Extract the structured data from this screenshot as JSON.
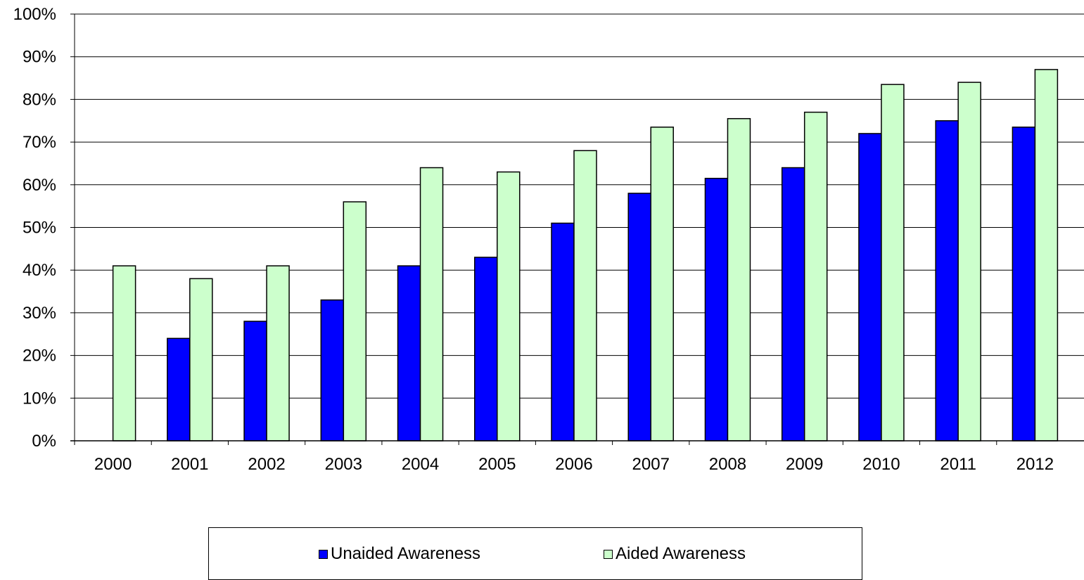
{
  "chart_data": {
    "type": "bar",
    "categories": [
      "2000",
      "2001",
      "2002",
      "2003",
      "2004",
      "2005",
      "2006",
      "2007",
      "2008",
      "2009",
      "2010",
      "2011",
      "2012"
    ],
    "series": [
      {
        "name": "Unaided Awareness",
        "color": "#0000FF",
        "values": [
          null,
          24,
          28,
          33,
          41,
          43,
          51,
          58,
          61.5,
          64,
          72,
          75,
          73.5
        ]
      },
      {
        "name": "Aided Awareness",
        "color": "#CCFFCC",
        "values": [
          41,
          38,
          41,
          56,
          64,
          63,
          68,
          73.5,
          75.5,
          77,
          83.5,
          84,
          87
        ]
      }
    ],
    "ylim": [
      0,
      100
    ],
    "yticks": [
      "0%",
      "10%",
      "20%",
      "30%",
      "40%",
      "50%",
      "60%",
      "70%",
      "80%",
      "90%",
      "100%"
    ],
    "y_tick_values": [
      0,
      10,
      20,
      30,
      40,
      50,
      60,
      70,
      80,
      90,
      100
    ],
    "grid": true,
    "legend_position": "bottom",
    "title": "",
    "xlabel": "",
    "ylabel": ""
  }
}
